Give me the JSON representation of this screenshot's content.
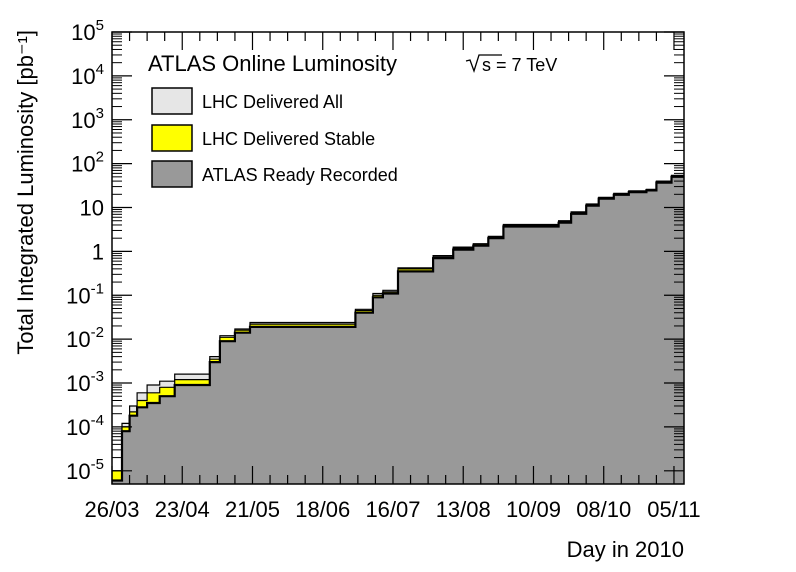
{
  "chart_data": {
    "type": "area",
    "title": "ATLAS Online Luminosity",
    "energy_label": "√s = 7 TeV",
    "energy_value": "s = 7 TeV",
    "xlabel": "Day in 2010",
    "ylabel": "Total Integrated Luminosity [pb⁻¹]",
    "yscale": "log",
    "ylim": [
      5e-06,
      100000
    ],
    "xlim": [
      "2010-03-26",
      "2010-11-09"
    ],
    "x_ticks": [
      "26/03",
      "23/04",
      "21/05",
      "18/06",
      "16/07",
      "13/08",
      "10/09",
      "08/10",
      "05/11"
    ],
    "y_ticks": [
      "10^-5",
      "10^-4",
      "10^-3",
      "10^-2",
      "10^-1",
      "1",
      "10",
      "10^2",
      "10^3",
      "10^4",
      "10^5"
    ],
    "legend_position": "top-left",
    "colors": {
      "delivered_all": "#e6e6e6",
      "delivered_stable": "#ffff00",
      "ready_recorded": "#999999"
    },
    "series": [
      {
        "name": "LHC Delivered All",
        "x": [
          "2010-03-26",
          "2010-03-30",
          "2010-04-02",
          "2010-04-05",
          "2010-04-09",
          "2010-04-14",
          "2010-04-20",
          "2010-04-28",
          "2010-05-04",
          "2010-05-08",
          "2010-05-14",
          "2010-05-20",
          "2010-06-08",
          "2010-06-15",
          "2010-06-25",
          "2010-07-01",
          "2010-07-08",
          "2010-07-12",
          "2010-07-18",
          "2010-07-23",
          "2010-08-01",
          "2010-08-09",
          "2010-08-17",
          "2010-08-23",
          "2010-08-29",
          "2010-09-16",
          "2010-09-20",
          "2010-09-25",
          "2010-10-01",
          "2010-10-06",
          "2010-10-12",
          "2010-10-18",
          "2010-10-25",
          "2010-10-29",
          "2010-11-04"
        ],
        "values": [
          1e-05,
          0.00012,
          0.0003,
          0.0006,
          0.0009,
          0.0011,
          0.0016,
          0.0016,
          0.004,
          0.012,
          0.017,
          0.024,
          0.024,
          0.024,
          0.024,
          0.048,
          0.11,
          0.13,
          0.42,
          0.42,
          0.8,
          1.25,
          1.5,
          2.2,
          4.1,
          4.1,
          5.0,
          8.0,
          12,
          17,
          21,
          24,
          26,
          40,
          54
        ]
      },
      {
        "name": "LHC Delivered Stable",
        "x": [
          "2010-03-26",
          "2010-03-30",
          "2010-04-02",
          "2010-04-05",
          "2010-04-09",
          "2010-04-14",
          "2010-04-20",
          "2010-04-28",
          "2010-05-04",
          "2010-05-08",
          "2010-05-14",
          "2010-05-20",
          "2010-06-08",
          "2010-06-15",
          "2010-06-25",
          "2010-07-01",
          "2010-07-08",
          "2010-07-12",
          "2010-07-18",
          "2010-07-23",
          "2010-08-01",
          "2010-08-09",
          "2010-08-17",
          "2010-08-23",
          "2010-08-29",
          "2010-09-16",
          "2010-09-20",
          "2010-09-25",
          "2010-10-01",
          "2010-10-06",
          "2010-10-12",
          "2010-10-18",
          "2010-10-25",
          "2010-10-29",
          "2010-11-04"
        ],
        "values": [
          1e-05,
          0.0001,
          0.00022,
          0.0004,
          0.0006,
          0.0008,
          0.0012,
          0.0012,
          0.0035,
          0.011,
          0.016,
          0.022,
          0.022,
          0.022,
          0.022,
          0.045,
          0.1,
          0.12,
          0.4,
          0.4,
          0.75,
          1.2,
          1.45,
          2.1,
          4.0,
          4.0,
          4.8,
          7.7,
          11.5,
          16.5,
          20.5,
          23.5,
          25.5,
          39,
          52
        ]
      },
      {
        "name": "ATLAS Ready Recorded",
        "x": [
          "2010-03-26",
          "2010-03-30",
          "2010-04-02",
          "2010-04-05",
          "2010-04-09",
          "2010-04-14",
          "2010-04-20",
          "2010-04-28",
          "2010-05-04",
          "2010-05-08",
          "2010-05-14",
          "2010-05-20",
          "2010-06-08",
          "2010-06-15",
          "2010-06-25",
          "2010-07-01",
          "2010-07-08",
          "2010-07-12",
          "2010-07-18",
          "2010-07-23",
          "2010-08-01",
          "2010-08-09",
          "2010-08-17",
          "2010-08-23",
          "2010-08-29",
          "2010-09-16",
          "2010-09-20",
          "2010-09-25",
          "2010-10-01",
          "2010-10-06",
          "2010-10-12",
          "2010-10-18",
          "2010-10-25",
          "2010-10-29",
          "2010-11-04"
        ],
        "values": [
          6e-06,
          8e-05,
          0.00018,
          0.00028,
          0.00035,
          0.0005,
          0.0009,
          0.0009,
          0.003,
          0.009,
          0.014,
          0.019,
          0.019,
          0.019,
          0.019,
          0.04,
          0.09,
          0.11,
          0.35,
          0.35,
          0.7,
          1.1,
          1.35,
          2.0,
          3.7,
          3.7,
          4.5,
          7.2,
          11,
          16,
          19.5,
          22.5,
          24.5,
          37,
          50
        ]
      }
    ]
  }
}
